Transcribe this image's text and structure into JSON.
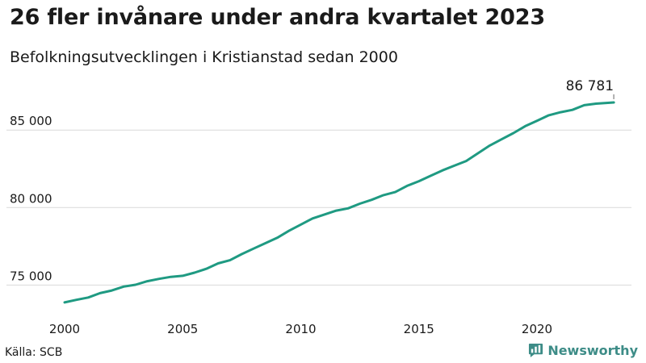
{
  "header": {
    "title": "26 fler invånare under andra kvartalet 2023",
    "subtitle": "Befolkningsutvecklingen i Kristianstad sedan 2000"
  },
  "footer": {
    "source": "Källa: SCB",
    "brand": "Newsworthy"
  },
  "colors": {
    "line": "#1f9a82",
    "grid": "#d9d9d9",
    "text": "#1a1a1a",
    "brand": "#3d8c87"
  },
  "chart_data": {
    "type": "line",
    "x_unit": "year",
    "xlim": [
      2000,
      2024
    ],
    "ylim": [
      73200,
      88600
    ],
    "yticks": [
      {
        "value": 75000,
        "label": "75 000"
      },
      {
        "value": 80000,
        "label": "80 000"
      },
      {
        "value": 85000,
        "label": "85 000"
      }
    ],
    "xticks": [
      {
        "value": 2000,
        "label": "2000"
      },
      {
        "value": 2005,
        "label": "2005"
      },
      {
        "value": 2010,
        "label": "2010"
      },
      {
        "value": 2015,
        "label": "2015"
      },
      {
        "value": 2020,
        "label": "2020"
      }
    ],
    "grid": "horizontal",
    "legend": "none",
    "annotation": {
      "x": 2023.25,
      "y": 86781,
      "label": "86 781"
    },
    "series": [
      {
        "x": [
          2000.0,
          2000.5,
          2001.0,
          2001.5,
          2002.0,
          2002.5,
          2003.0,
          2003.5,
          2004.0,
          2004.5,
          2005.0,
          2005.5,
          2006.0,
          2006.5,
          2007.0,
          2007.5,
          2008.0,
          2008.5,
          2009.0,
          2009.5,
          2010.0,
          2010.5,
          2011.0,
          2011.5,
          2012.0,
          2012.5,
          2013.0,
          2013.5,
          2014.0,
          2014.5,
          2015.0,
          2015.5,
          2016.0,
          2016.5,
          2017.0,
          2017.5,
          2018.0,
          2018.5,
          2019.0,
          2019.5,
          2020.0,
          2020.5,
          2021.0,
          2021.5,
          2022.0,
          2022.5,
          2023.0,
          2023.25
        ],
        "y": [
          73880,
          74050,
          74200,
          74480,
          74650,
          74900,
          75020,
          75250,
          75400,
          75530,
          75600,
          75800,
          76050,
          76400,
          76600,
          77000,
          77350,
          77700,
          78050,
          78500,
          78900,
          79300,
          79550,
          79800,
          79950,
          80250,
          80500,
          80800,
          81000,
          81400,
          81700,
          82050,
          82400,
          82700,
          83000,
          83500,
          84000,
          84400,
          84800,
          85250,
          85600,
          85950,
          86150,
          86300,
          86600,
          86700,
          86755,
          86781
        ]
      }
    ]
  }
}
